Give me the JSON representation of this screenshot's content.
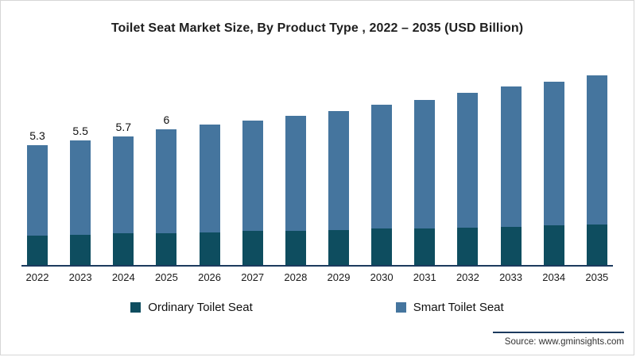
{
  "title": "Toilet Seat Market Size, By Product Type , 2022 – 2035 (USD Billion)",
  "source": "Source: www.gminsights.com",
  "colors": {
    "ordinary": "#0e4d5f",
    "smart": "#45759e",
    "axis": "#1c3a5e"
  },
  "legend": {
    "items": [
      {
        "label": "Ordinary Toilet Seat",
        "color": "#0e4d5f"
      },
      {
        "label": "Smart Toilet Seat",
        "color": "#45759e"
      }
    ]
  },
  "chart_data": {
    "type": "bar",
    "subtype": "stacked-column",
    "title": "Toilet Seat Market Size, By Product Type , 2022 – 2035 (USD Billion)",
    "xlabel": "",
    "ylabel": "USD Billion",
    "ylim": [
      0,
      9
    ],
    "grid": false,
    "legend_position": "bottom",
    "categories": [
      "2022",
      "2023",
      "2024",
      "2025",
      "2026",
      "2027",
      "2028",
      "2029",
      "2030",
      "2031",
      "2032",
      "2033",
      "2034",
      "2035"
    ],
    "series": [
      {
        "name": "Ordinary Toilet Seat",
        "color": "#0e4d5f",
        "values": [
          1.3,
          1.35,
          1.4,
          1.4,
          1.45,
          1.5,
          1.5,
          1.55,
          1.6,
          1.6,
          1.65,
          1.7,
          1.75,
          1.8
        ]
      },
      {
        "name": "Smart Toilet Seat",
        "color": "#45759e",
        "values": [
          4.0,
          4.15,
          4.3,
          4.6,
          4.75,
          4.9,
          5.1,
          5.25,
          5.5,
          5.7,
          5.95,
          6.2,
          6.35,
          6.6
        ]
      }
    ],
    "totals": [
      5.3,
      5.5,
      5.7,
      6.0,
      6.2,
      6.4,
      6.6,
      6.8,
      7.1,
      7.3,
      7.6,
      7.9,
      8.1,
      8.4
    ],
    "data_labels": [
      "5.3",
      "5.5",
      "5.7",
      "6",
      "",
      "",
      "",
      "",
      "",
      "",
      "",
      "",
      "",
      ""
    ]
  }
}
